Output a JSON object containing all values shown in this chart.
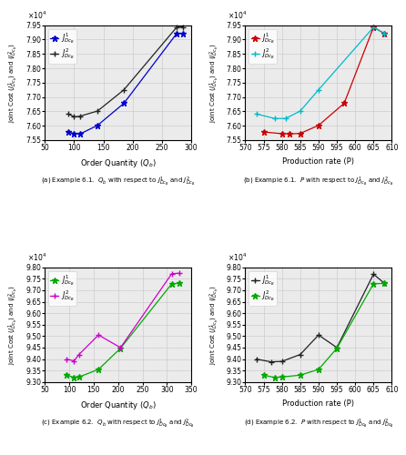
{
  "subplot_a": {
    "xlabel": "Order Quantity ($Q_b$)",
    "ylabel": "Joint Cost ($J^1_{Dc_b}$) and ($J^2_{Dc_b}$)",
    "caption": "(a) Example 6.1.  $Q_b$ with respect to $J^1_{Dc_B}$ and $J^2_{Dc_B}$",
    "xlim": [
      50,
      300
    ],
    "ylim": [
      75500.0,
      79500.0
    ],
    "yticks": [
      75500.0,
      76000.0,
      76500.0,
      77000.0,
      77500.0,
      78000.0,
      78500.0,
      79000.0,
      79500.0
    ],
    "xticks": [
      50,
      100,
      150,
      200,
      250,
      300
    ],
    "series1": {
      "x": [
        90,
        100,
        110,
        140,
        185,
        275,
        285
      ],
      "y": [
        75780.0,
        75720.0,
        75710.0,
        76010.0,
        76780.0,
        79210.0,
        79210.0
      ],
      "color": "#0000CC",
      "marker": "*",
      "label": "$J^1_{Dc_B}$"
    },
    "series2": {
      "x": [
        90,
        100,
        110,
        140,
        185,
        275,
        285
      ],
      "y": [
        76410.0,
        76310.0,
        76330.0,
        76510.0,
        77250.0,
        79430.0,
        79440.0
      ],
      "color": "#222222",
      "marker": "+",
      "label": "$J^2_{Dc_B}$"
    }
  },
  "subplot_b": {
    "xlabel": "Production rate (P)",
    "ylabel": "Joint Cost ($J^1_{Dc_b}$) and ($J^2_{Dc_b}$)",
    "caption": "(b) Example 6.1.  $P$ with respect to $J^1_{Dc_B}$ and $J^2_{Dc_B}$",
    "xlim": [
      570,
      610
    ],
    "ylim": [
      75500.0,
      79500.0
    ],
    "yticks": [
      75500.0,
      76000.0,
      76500.0,
      77000.0,
      77500.0,
      78000.0,
      78500.0,
      79000.0,
      79500.0
    ],
    "xticks": [
      570,
      575,
      580,
      585,
      590,
      595,
      600,
      605,
      610
    ],
    "series1": {
      "x": [
        575,
        580,
        582,
        585,
        590,
        597,
        605,
        608
      ],
      "y": [
        75780.0,
        75720.0,
        75710.0,
        75730.0,
        76010.0,
        76780.0,
        79430.0,
        79210.0
      ],
      "color": "#CC0000",
      "marker": "*",
      "label": "$J^1_{Dc_B}$"
    },
    "series2": {
      "x": [
        573,
        578,
        581,
        585,
        590,
        605,
        608
      ],
      "y": [
        76410.0,
        76250.0,
        76250.0,
        76510.0,
        77250.0,
        79430.0,
        79210.0
      ],
      "color": "#00BBCC",
      "marker": "+",
      "label": "$J^2_{Dc_B}$"
    }
  },
  "subplot_c": {
    "xlabel": "Order Quantity ($Q_b$)",
    "ylabel": "Joint Cost ($J^1_{Dc_b}$) and ($J^2_{Dc_b}$)",
    "caption": "(c) Example 6.2.  $Q_b$ with respect to $J^1_{Dc_B}$ and $J^2_{Dc_B}$",
    "xlim": [
      50,
      350
    ],
    "ylim": [
      93000.0,
      98000.0
    ],
    "yticks": [
      93000.0,
      93500.0,
      94000.0,
      94500.0,
      95000.0,
      95500.0,
      96000.0,
      96500.0,
      97000.0,
      97500.0,
      98000.0
    ],
    "xticks": [
      50,
      100,
      150,
      200,
      250,
      300,
      350
    ],
    "series1": {
      "x": [
        95,
        110,
        120,
        160,
        205,
        310,
        325
      ],
      "y": [
        93300.0,
        93200.0,
        93220.0,
        93550.0,
        94470.0,
        97280.0,
        97300.0
      ],
      "color": "#00AA00",
      "marker": "*",
      "label": "$J^1_{Dc_B}$"
    },
    "series2": {
      "x": [
        95,
        110,
        120,
        160,
        205,
        310,
        325
      ],
      "y": [
        94000.0,
        93920.0,
        94200.0,
        95050.0,
        94500.0,
        97720.0,
        97740.0
      ],
      "color": "#CC00CC",
      "marker": "+",
      "label": "$J^2_{Dc_B}$"
    }
  },
  "subplot_d": {
    "xlabel": "Production rate (P)",
    "ylabel": "Joint Cost ($J^1_{Dc_b}$) and ($J^2_{Dc_b}$)",
    "caption": "(d) Example 6.2.  $P$ with respect to $J^1_{Dc_B}$ and $J^2_{Dc_B}$",
    "xlim": [
      570,
      610
    ],
    "ylim": [
      93000.0,
      98000.0
    ],
    "yticks": [
      93000.0,
      93500.0,
      94000.0,
      94500.0,
      95000.0,
      95500.0,
      96000.0,
      96500.0,
      97000.0,
      97500.0,
      98000.0
    ],
    "xticks": [
      570,
      575,
      580,
      585,
      590,
      595,
      600,
      605,
      610
    ],
    "series1": {
      "x": [
        573,
        577,
        580,
        585,
        590,
        595,
        605,
        608
      ],
      "y": [
        94000.0,
        93880.0,
        93900.0,
        94200.0,
        95050.0,
        94500.0,
        97700.0,
        97300.0
      ],
      "color": "#222222",
      "marker": "+",
      "label": "$J^1_{Dc_B}$"
    },
    "series2": {
      "x": [
        575,
        578,
        580,
        585,
        590,
        595,
        605,
        608
      ],
      "y": [
        93300.0,
        93200.0,
        93220.0,
        93300.0,
        93550.0,
        94470.0,
        97280.0,
        97300.0
      ],
      "color": "#00AA00",
      "marker": "*",
      "label": "$J^2_{Dc_B}$"
    }
  },
  "background_color": "#ebebeb",
  "grid_color": "#cccccc"
}
